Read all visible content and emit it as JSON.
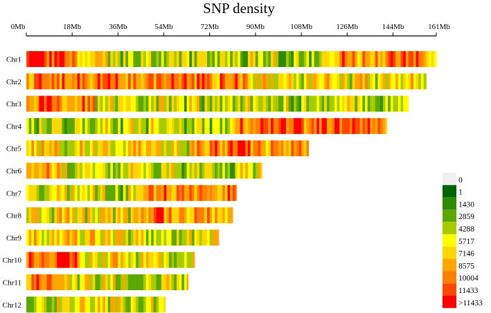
{
  "chart_data": {
    "type": "heatmap",
    "title": "SNP density",
    "x_unit": "Mb",
    "xlim": [
      0,
      161
    ],
    "ticks": [
      {
        "value": 0,
        "label": "0Mb"
      },
      {
        "value": 18,
        "label": "18Mb"
      },
      {
        "value": 36,
        "label": "36Mb"
      },
      {
        "value": 54,
        "label": "54Mb"
      },
      {
        "value": 72,
        "label": "72Mb"
      },
      {
        "value": 90,
        "label": "90Mb"
      },
      {
        "value": 108,
        "label": "108Mb"
      },
      {
        "value": 126,
        "label": "126Mb"
      },
      {
        "value": 144,
        "label": "144Mb"
      },
      {
        "value": 161,
        "label": "161Mb"
      }
    ],
    "chromosomes": [
      {
        "name": "Chr1",
        "length_mb": 161.0
      },
      {
        "name": "Chr2",
        "length_mb": 157.0
      },
      {
        "name": "Chr3",
        "length_mb": 150.0
      },
      {
        "name": "Chr4",
        "length_mb": 141.5
      },
      {
        "name": "Chr5",
        "length_mb": 110.8
      },
      {
        "name": "Chr6",
        "length_mb": 92.5
      },
      {
        "name": "Chr7",
        "length_mb": 82.5
      },
      {
        "name": "Chr8",
        "length_mb": 81.0
      },
      {
        "name": "Chr9",
        "length_mb": 75.5
      },
      {
        "name": "Chr10",
        "length_mb": 66.0
      },
      {
        "name": "Chr11",
        "length_mb": 63.5
      },
      {
        "name": "Chr12",
        "length_mb": 54.5
      }
    ],
    "legend": {
      "position": "right",
      "items": [
        {
          "label": "0",
          "color": "#f0f0f0"
        },
        {
          "label": "1",
          "color": "#006400"
        },
        {
          "label": "1430",
          "color": "#2e8b00"
        },
        {
          "label": "2859",
          "color": "#5aa800"
        },
        {
          "label": "4288",
          "color": "#a6cc00"
        },
        {
          "label": "5717",
          "color": "#ffff00"
        },
        {
          "label": "7146",
          "color": "#ffd700"
        },
        {
          "label": "8575",
          "color": "#ffa500"
        },
        {
          "label": "10004",
          "color": "#ff7f00"
        },
        {
          "label": "11433",
          "color": "#ff4500"
        },
        {
          "label": ">11433",
          "color": "#ff0000"
        }
      ]
    }
  }
}
